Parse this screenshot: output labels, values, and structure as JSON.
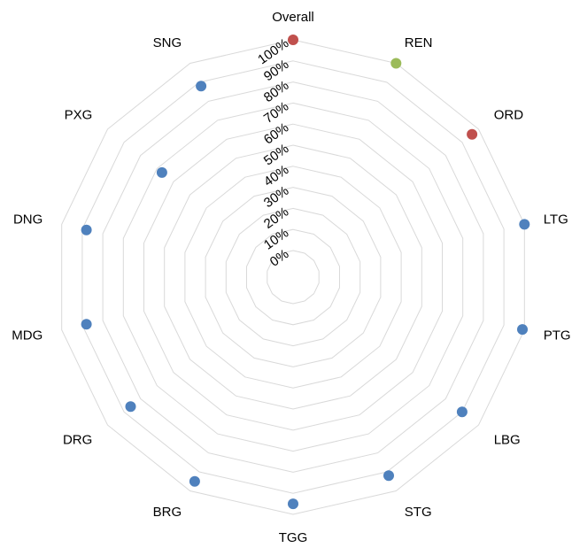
{
  "chart_data": {
    "type": "radar",
    "categories": [
      "Overall",
      "REN",
      "ORD",
      "LTG",
      "PTG",
      "LBG",
      "STG",
      "TGG",
      "BRG",
      "DRG",
      "MDG",
      "DNG",
      "PXG",
      "SNG"
    ],
    "values": [
      100,
      100,
      96,
      100,
      99,
      90,
      92,
      95,
      95,
      86,
      88,
      88,
      67,
      88
    ],
    "point_colors": [
      "#c0504d",
      "#9bbb59",
      "#c0504d",
      "#4f81bd",
      "#4f81bd",
      "#4f81bd",
      "#4f81bd",
      "#4f81bd",
      "#4f81bd",
      "#4f81bd",
      "#4f81bd",
      "#4f81bd",
      "#4f81bd",
      "#4f81bd"
    ],
    "rlim": [
      0,
      100
    ],
    "tick_labels": [
      "0%",
      "10%",
      "20%",
      "30%",
      "40%",
      "50%",
      "60%",
      "70%",
      "80%",
      "90%",
      "100%"
    ],
    "grid": true,
    "grid_color": "#d9d9d9"
  }
}
